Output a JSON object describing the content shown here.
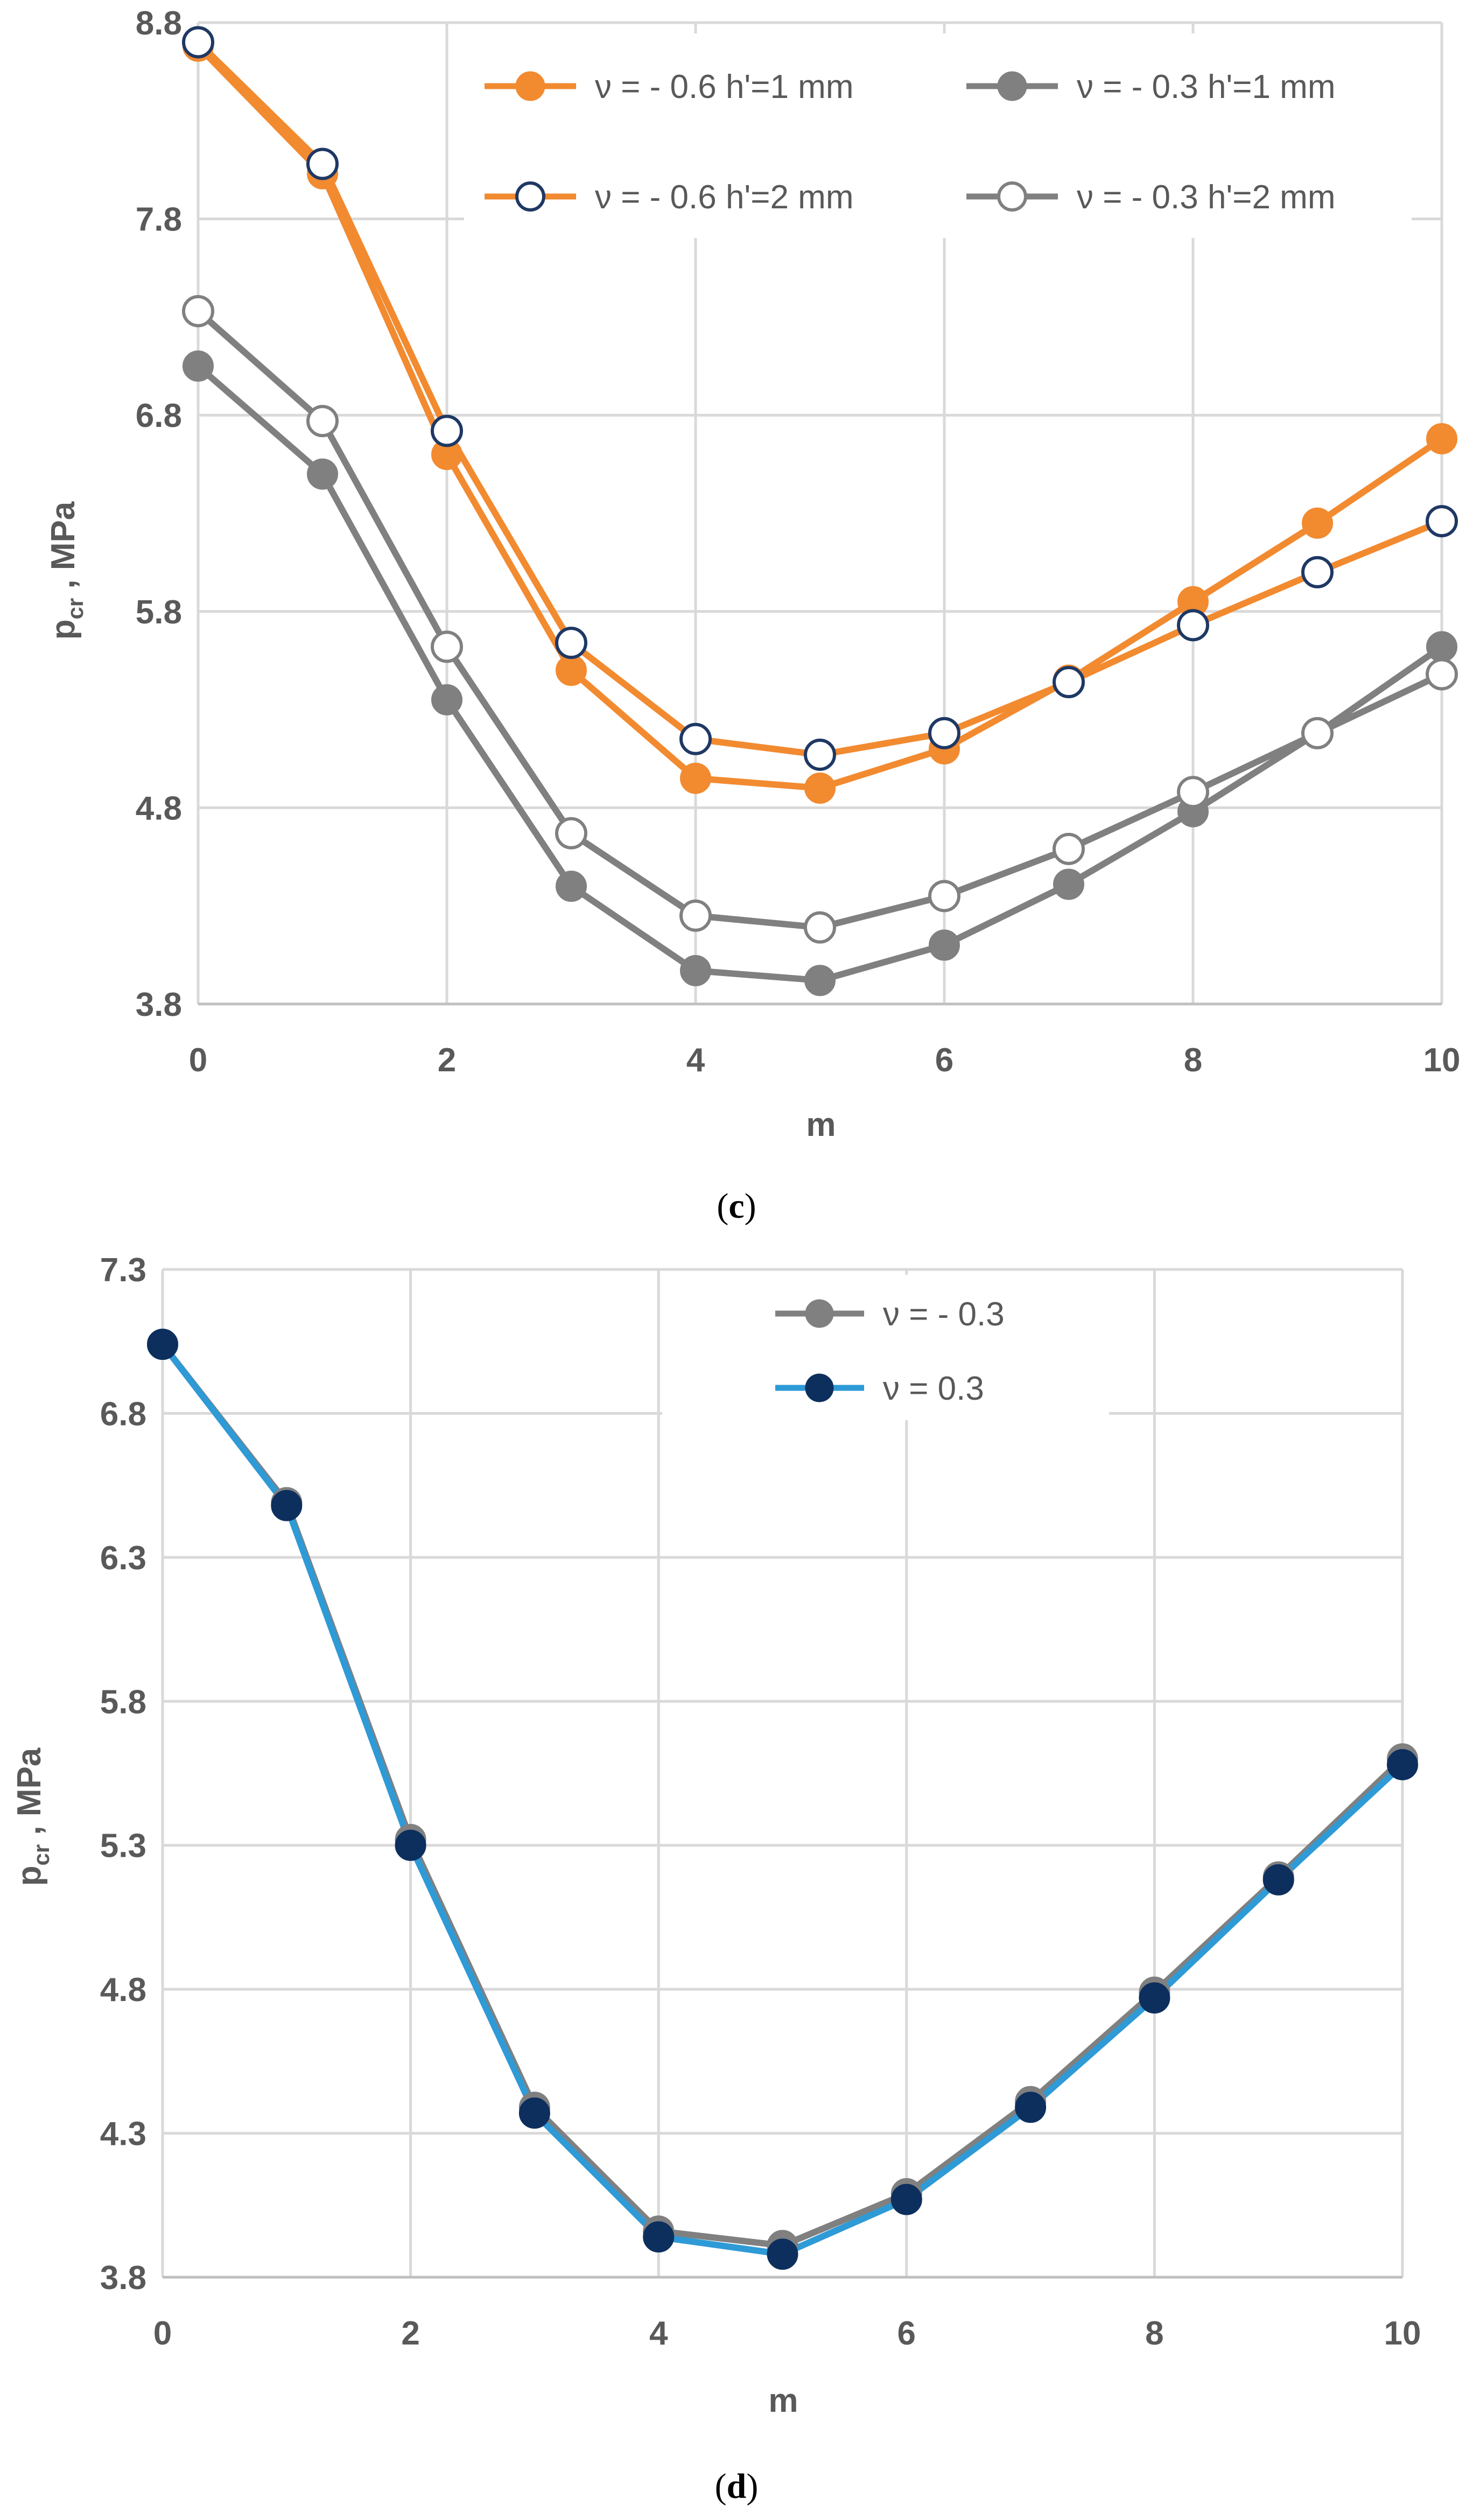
{
  "colors": {
    "orange": "#F28A30",
    "gray": "#808080",
    "navy": "#1F3864",
    "blue": "#2E9AD6",
    "darkNavy": "#0D2F5E",
    "grid": "#D9D9D9",
    "text": "#595959"
  },
  "chart_data": [
    {
      "type": "line",
      "caption": "(c)",
      "xlabel": "m",
      "ylabel_main": "p",
      "ylabel_sub": "cr",
      "ylabel_rest": " , MPa",
      "xlim": [
        0,
        10
      ],
      "ylim": [
        3.8,
        8.8
      ],
      "xticks": [
        "0",
        "2",
        "4",
        "6",
        "8",
        "10"
      ],
      "yticks": [
        "3.8",
        "4.8",
        "5.8",
        "6.8",
        "7.8",
        "8.8"
      ],
      "x": [
        0,
        1,
        2,
        3,
        4,
        5,
        6,
        7,
        8,
        9,
        10
      ],
      "series": [
        {
          "name": "ν = - 0.6 h'=1 mm",
          "line": "orange",
          "marker": "orange",
          "fill": "orange",
          "values": [
            8.68,
            8.03,
            6.6,
            5.5,
            4.95,
            4.9,
            5.1,
            5.45,
            5.85,
            6.25,
            6.68
          ]
        },
        {
          "name": "ν = - 0.3 h'=1 mm",
          "line": "gray",
          "marker": "gray",
          "fill": "gray",
          "values": [
            7.05,
            6.5,
            5.35,
            4.4,
            3.97,
            3.92,
            4.1,
            4.41,
            4.78,
            5.18,
            5.62
          ]
        },
        {
          "name": "ν = - 0.6 h'=2 mm",
          "line": "orange",
          "marker": "navy",
          "fill": "white",
          "values": [
            8.7,
            8.08,
            6.72,
            5.64,
            5.15,
            5.07,
            5.18,
            5.44,
            5.73,
            6.0,
            6.26
          ]
        },
        {
          "name": "ν = - 0.3 h'=2 mm",
          "line": "gray",
          "marker": "gray",
          "fill": "white",
          "values": [
            7.33,
            6.77,
            5.62,
            4.67,
            4.25,
            4.19,
            4.35,
            4.59,
            4.88,
            5.18,
            5.48
          ]
        }
      ]
    },
    {
      "type": "line",
      "caption": "(d)",
      "xlabel": "m",
      "ylabel_main": "p",
      "ylabel_sub": "cr",
      "ylabel_rest": " , MPa",
      "xlim": [
        0,
        10
      ],
      "ylim": [
        3.8,
        7.3
      ],
      "xticks": [
        "0",
        "2",
        "4",
        "6",
        "8",
        "10"
      ],
      "yticks": [
        "3.8",
        "4.3",
        "4.8",
        "5.3",
        "5.8",
        "6.3",
        "6.8",
        "7.3"
      ],
      "x": [
        0,
        1,
        2,
        3,
        4,
        5,
        6,
        7,
        8,
        9,
        10
      ],
      "series": [
        {
          "name": "ν = - 0.3",
          "line": "gray",
          "marker": "gray",
          "fill": "gray",
          "values": [
            7.04,
            6.49,
            5.32,
            4.39,
            3.96,
            3.91,
            4.09,
            4.41,
            4.79,
            5.19,
            5.6
          ]
        },
        {
          "name": "ν = 0.3",
          "line": "blue",
          "marker": "darkNavy",
          "fill": "darkNavy",
          "values": [
            7.04,
            6.48,
            5.3,
            4.37,
            3.94,
            3.88,
            4.07,
            4.39,
            4.77,
            5.18,
            5.58
          ]
        }
      ]
    }
  ]
}
